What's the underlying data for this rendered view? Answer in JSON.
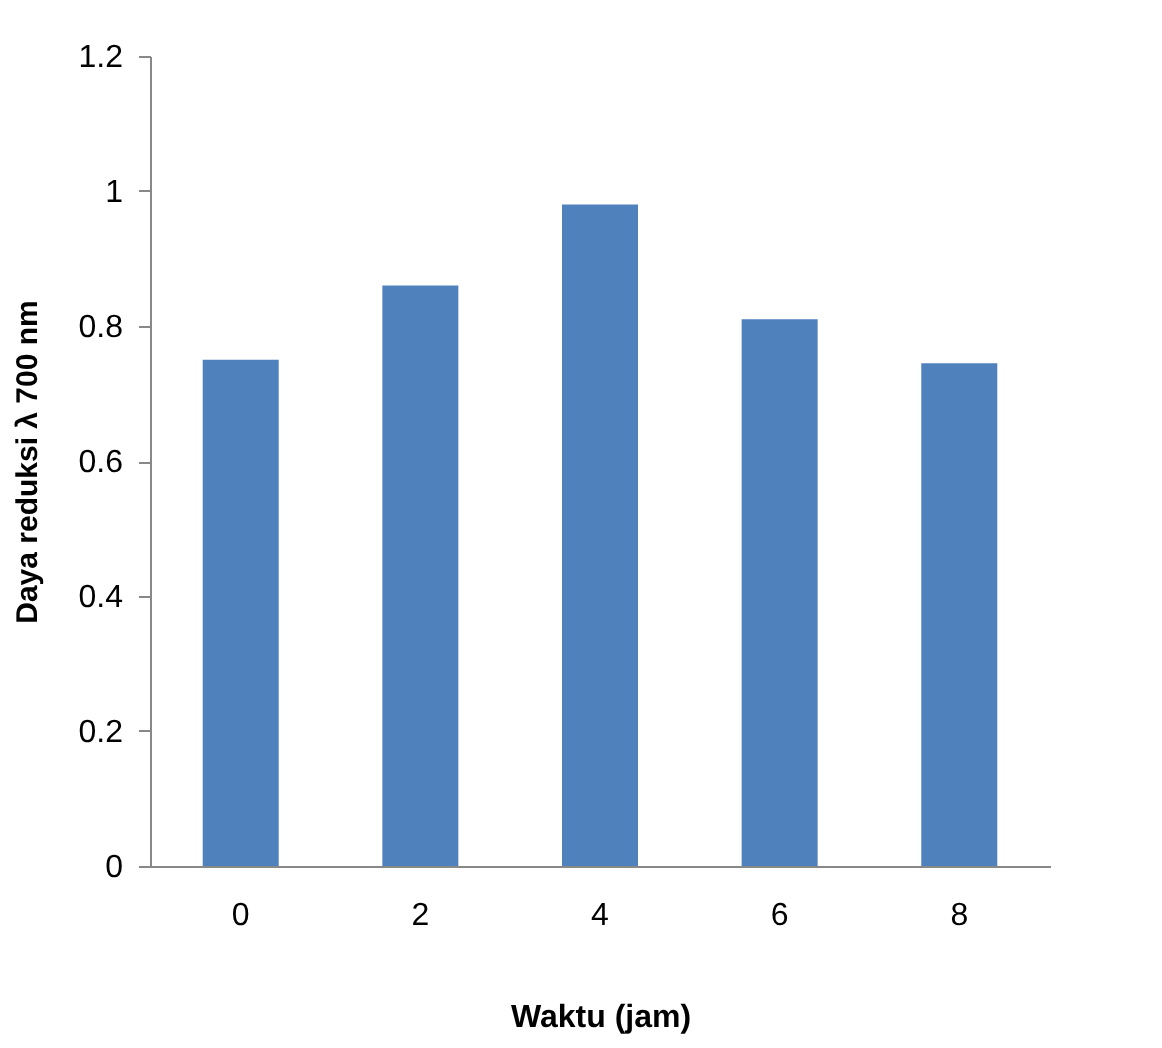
{
  "chart_data": {
    "type": "bar",
    "xlabel": "Waktu (jam)",
    "ylabel": "Daya reduksi  λ 700 nm",
    "categories": [
      "0",
      "2",
      "4",
      "6",
      "8"
    ],
    "values": [
      0.75,
      0.86,
      0.98,
      0.81,
      0.745
    ],
    "color": "#4f81bd",
    "ylim": [
      0,
      1.2
    ],
    "yticks": [
      0,
      0.2,
      0.4,
      0.6,
      0.8,
      1,
      1.2
    ],
    "grid": false
  }
}
